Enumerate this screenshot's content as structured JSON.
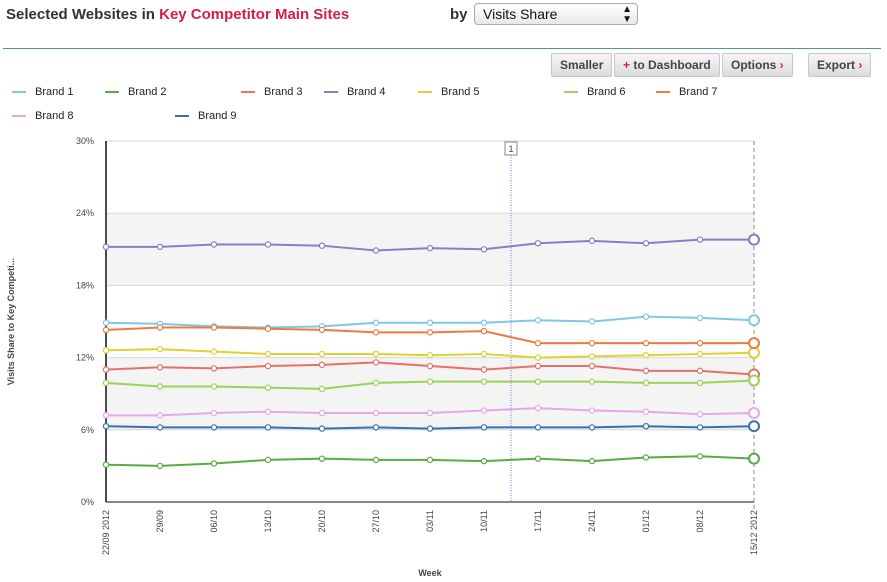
{
  "header": {
    "title_prefix": "Selected Websites in ",
    "title_highlight": "Key Competitor Main Sites",
    "by_label": "by",
    "metric_select": "Visits Share"
  },
  "toolbar": {
    "smaller": "Smaller",
    "dashboard_plus": "+",
    "dashboard": "to Dashboard",
    "options": "Options",
    "export": "Export",
    "chevron": "›"
  },
  "colors": {
    "accent": "#d61e45",
    "divider": "#5a8fa8"
  },
  "chart_data": {
    "type": "line",
    "xlabel": "Week",
    "ylabel": "Visits Share to Key Competi...",
    "ylim": [
      0,
      30
    ],
    "y_ticks": [
      "0%",
      "6%",
      "12%",
      "18%",
      "24%",
      "30%"
    ],
    "grid": "alternating bands",
    "categories": [
      "22/09 2012",
      "29/09",
      "06/10",
      "13/10",
      "20/10",
      "27/10",
      "03/11",
      "10/11",
      "17/11",
      "24/11",
      "01/12",
      "08/12",
      "15/12 2012"
    ],
    "marker_label": "1",
    "series": [
      {
        "name": "Brand 1",
        "color": "#7ec8e3",
        "values": [
          14.9,
          14.8,
          14.6,
          14.5,
          14.6,
          14.9,
          14.9,
          14.9,
          15.1,
          15.0,
          15.4,
          15.3,
          15.1
        ]
      },
      {
        "name": "Brand 2",
        "color": "#5aaa46",
        "values": [
          3.1,
          3.0,
          3.2,
          3.5,
          3.6,
          3.5,
          3.5,
          3.4,
          3.6,
          3.4,
          3.7,
          3.8,
          3.6
        ]
      },
      {
        "name": "Brand 3",
        "color": "#e8706a",
        "values": [
          11.0,
          11.2,
          11.1,
          11.3,
          11.4,
          11.6,
          11.3,
          11.0,
          11.3,
          11.3,
          10.9,
          10.9,
          10.6
        ]
      },
      {
        "name": "Brand 4",
        "color": "#8e7cc3",
        "values": [
          21.2,
          21.2,
          21.4,
          21.4,
          21.3,
          20.9,
          21.1,
          21.0,
          21.5,
          21.7,
          21.5,
          21.8,
          21.8
        ]
      },
      {
        "name": "Brand 5",
        "color": "#d9d432",
        "values": [
          12.6,
          12.7,
          12.5,
          12.3,
          12.3,
          12.3,
          12.2,
          12.3,
          12.0,
          12.1,
          12.2,
          12.3,
          12.4
        ]
      },
      {
        "name": "Brand 6",
        "color": "#9bd35a",
        "values": [
          9.9,
          9.6,
          9.6,
          9.5,
          9.4,
          9.9,
          10.0,
          10.0,
          10.0,
          10.0,
          9.9,
          9.9,
          10.1
        ]
      },
      {
        "name": "Brand 7",
        "color": "#ee7a40",
        "values": [
          14.3,
          14.5,
          14.5,
          14.4,
          14.3,
          14.1,
          14.1,
          14.2,
          13.2,
          13.2,
          13.2,
          13.2,
          13.2
        ]
      },
      {
        "name": "Brand 8",
        "color": "#e6a6e8",
        "values": [
          7.2,
          7.2,
          7.4,
          7.5,
          7.4,
          7.4,
          7.4,
          7.6,
          7.8,
          7.6,
          7.5,
          7.3,
          7.4
        ]
      },
      {
        "name": "Brand 9",
        "color": "#3a6fb5",
        "values": [
          6.3,
          6.2,
          6.2,
          6.2,
          6.1,
          6.2,
          6.1,
          6.2,
          6.2,
          6.2,
          6.3,
          6.2,
          6.3
        ]
      }
    ]
  }
}
